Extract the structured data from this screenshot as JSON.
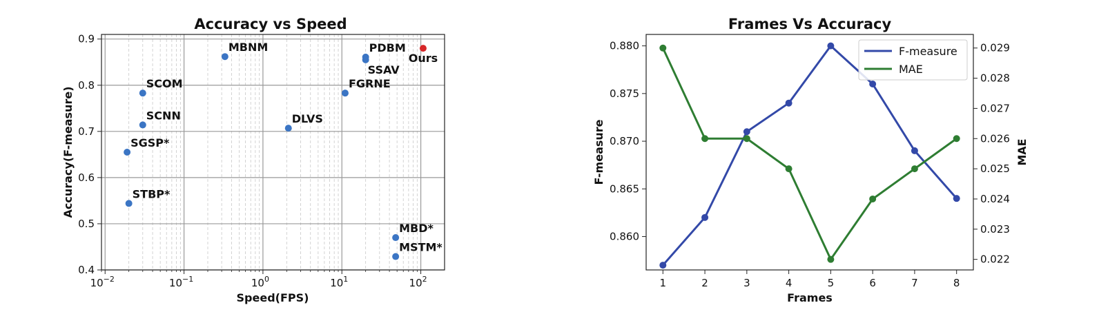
{
  "chart_data": [
    {
      "type": "scatter",
      "title": "Accuracy vs Speed",
      "xlabel": "Speed(FPS)",
      "ylabel": "Accuracy(F-measure)",
      "xscale": "log",
      "xlim": [
        0.009,
        200
      ],
      "ylim": [
        0.4,
        0.91
      ],
      "xticks": [
        {
          "value": 0.01,
          "base": "10",
          "exp": "−2"
        },
        {
          "value": 0.1,
          "base": "10",
          "exp": "−1"
        },
        {
          "value": 1,
          "base": "10",
          "exp": "0"
        },
        {
          "value": 10,
          "base": "10",
          "exp": "1"
        },
        {
          "value": 100,
          "base": "10",
          "exp": "2"
        }
      ],
      "yticks": [
        "0.4",
        "0.5",
        "0.6",
        "0.7",
        "0.8",
        "0.9"
      ],
      "grid": true,
      "points": [
        {
          "name": "MBNM",
          "x": 0.33,
          "y": 0.862,
          "color": "#3b75c4",
          "label_pos": "above-right"
        },
        {
          "name": "PDBM",
          "x": 20,
          "y": 0.861,
          "color": "#3b75c4",
          "label_pos": "above-right"
        },
        {
          "name": "SSAV",
          "x": 20,
          "y": 0.855,
          "color": "#3b75c4",
          "label_pos": "below-right"
        },
        {
          "name": "Ours",
          "x": 107,
          "y": 0.88,
          "color": "#d62728",
          "label_pos": "below"
        },
        {
          "name": "SCOM",
          "x": 0.03,
          "y": 0.783,
          "color": "#3b75c4",
          "label_pos": "above-right"
        },
        {
          "name": "FGRNE",
          "x": 11,
          "y": 0.783,
          "color": "#3b75c4",
          "label_pos": "above-right"
        },
        {
          "name": "SCNN",
          "x": 0.03,
          "y": 0.714,
          "color": "#3b75c4",
          "label_pos": "above-right"
        },
        {
          "name": "DLVS",
          "x": 2.1,
          "y": 0.707,
          "color": "#3b75c4",
          "label_pos": "above-right"
        },
        {
          "name": "SGSP*",
          "x": 0.019,
          "y": 0.655,
          "color": "#3b75c4",
          "label_pos": "above-right"
        },
        {
          "name": "STBP*",
          "x": 0.02,
          "y": 0.544,
          "color": "#3b75c4",
          "label_pos": "above-right"
        },
        {
          "name": "MBD*",
          "x": 48,
          "y": 0.47,
          "color": "#3b75c4",
          "label_pos": "above-right"
        },
        {
          "name": "MSTM*",
          "x": 48,
          "y": 0.429,
          "color": "#3b75c4",
          "label_pos": "above-right"
        }
      ]
    },
    {
      "type": "line",
      "title": "Frames Vs Accuracy",
      "xlabel": "Frames",
      "ylabel_left": "F-measure",
      "ylabel_right": "MAE",
      "x": [
        1,
        2,
        3,
        4,
        5,
        6,
        7,
        8
      ],
      "xlim": [
        0.6,
        8.4
      ],
      "ylim_left": [
        0.8565,
        0.8812
      ],
      "ylim_right": [
        0.02165,
        0.02945
      ],
      "yticks_left": [
        "0.860",
        "0.865",
        "0.870",
        "0.875",
        "0.880"
      ],
      "yticks_right": [
        "0.022",
        "0.023",
        "0.024",
        "0.025",
        "0.026",
        "0.027",
        "0.028",
        "0.029"
      ],
      "legend_position": "top-right",
      "series": [
        {
          "name": "F-measure",
          "axis": "left",
          "color": "#3349a8",
          "values": [
            0.857,
            0.862,
            0.871,
            0.874,
            0.88,
            0.876,
            0.869,
            0.864
          ]
        },
        {
          "name": "MAE",
          "axis": "right",
          "color": "#2e7d32",
          "values": [
            0.029,
            0.026,
            0.026,
            0.025,
            0.022,
            0.024,
            0.025,
            0.026
          ]
        }
      ]
    }
  ]
}
